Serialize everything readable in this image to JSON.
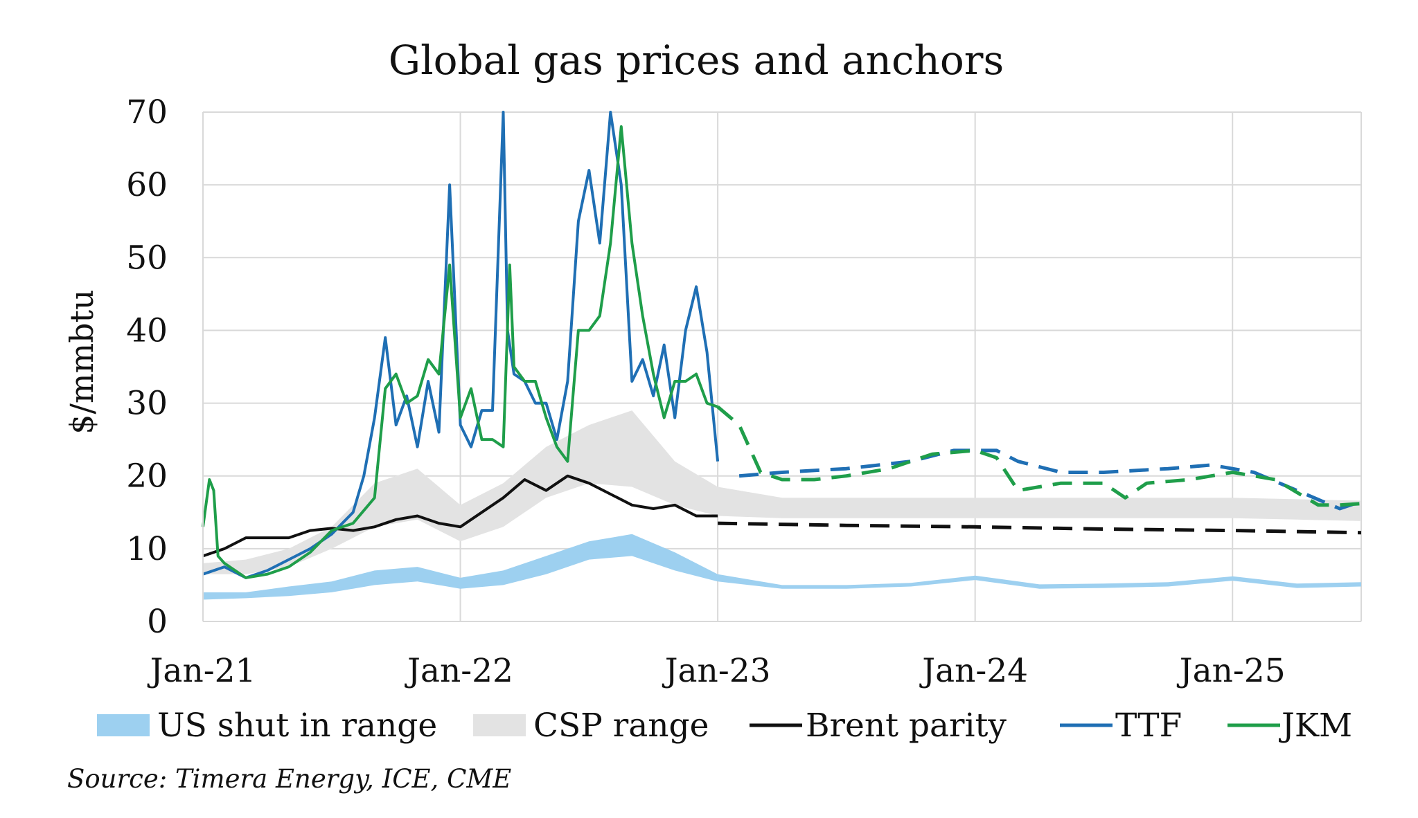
{
  "chart_data": {
    "type": "line",
    "title": "Global gas prices and anchors",
    "xlabel": "",
    "ylabel": "$/mmbtu",
    "ylim": [
      0,
      70
    ],
    "yticks": [
      0,
      10,
      20,
      30,
      40,
      50,
      60,
      70
    ],
    "xlim": [
      "2021-01",
      "2025-07"
    ],
    "x_unit": "months since Jan-21",
    "xlim_months": [
      0,
      54
    ],
    "xticks": [
      {
        "month": 0,
        "label": "Jan-21"
      },
      {
        "month": 12,
        "label": "Jan-22"
      },
      {
        "month": 24,
        "label": "Jan-23"
      },
      {
        "month": 36,
        "label": "Jan-24"
      },
      {
        "month": 48,
        "label": "Jan-25"
      }
    ],
    "grid": true,
    "legend_position": "bottom",
    "source": "Source: Timera Energy, ICE, CME",
    "colors": {
      "us_shut_in": "#9dd0f0",
      "csp": "#e3e3e3",
      "brent": "#111111",
      "ttf": "#1f6fb4",
      "jkm": "#1f9e4a",
      "grid": "#d9d9d9"
    },
    "bands": [
      {
        "name": "US shut in range",
        "color": "#9dd0f0",
        "x": [
          0,
          2,
          4,
          6,
          8,
          10,
          12,
          14,
          16,
          18,
          20,
          22,
          24,
          27,
          30,
          33,
          36,
          39,
          42,
          45,
          48,
          51,
          54
        ],
        "low": [
          3.0,
          3.2,
          3.5,
          4.0,
          5.0,
          5.5,
          4.5,
          5.0,
          6.5,
          8.5,
          9.0,
          7.0,
          5.5,
          4.5,
          4.5,
          4.8,
          5.7,
          4.5,
          4.6,
          4.8,
          5.6,
          4.6,
          4.8
        ],
        "high": [
          4.0,
          4.0,
          4.8,
          5.5,
          7.0,
          7.5,
          6.0,
          7.0,
          9.0,
          11.0,
          12.0,
          9.5,
          6.5,
          5.0,
          5.0,
          5.3,
          6.3,
          5.1,
          5.2,
          5.4,
          6.2,
          5.2,
          5.4
        ]
      },
      {
        "name": "CSP range",
        "color": "#e3e3e3",
        "x": [
          0,
          2,
          4,
          6,
          8,
          10,
          12,
          14,
          16,
          18,
          20,
          22,
          24,
          27,
          30,
          33,
          36,
          39,
          42,
          45,
          48,
          51,
          54
        ],
        "low": [
          6.5,
          6.5,
          7.5,
          10.0,
          13.0,
          14.0,
          11.0,
          13.0,
          17.0,
          19.0,
          18.5,
          16.0,
          14.5,
          14.2,
          14.2,
          14.2,
          14.2,
          14.2,
          14.2,
          14.2,
          14.2,
          14.0,
          13.8
        ],
        "high": [
          8.0,
          8.5,
          10.0,
          13.0,
          19.0,
          21.0,
          16.0,
          19.0,
          24.0,
          27.0,
          29.0,
          22.0,
          18.5,
          17.0,
          17.0,
          17.0,
          17.0,
          17.0,
          17.0,
          17.0,
          17.0,
          16.8,
          16.6
        ]
      }
    ],
    "series": [
      {
        "name": "Brent parity",
        "color": "#111111",
        "style": "solid",
        "x": [
          0,
          1,
          2,
          3,
          4,
          5,
          6,
          7,
          8,
          9,
          10,
          11,
          12,
          13,
          14,
          15,
          16,
          17,
          18,
          19,
          20,
          21,
          22,
          23,
          24
        ],
        "y": [
          9.0,
          10.0,
          11.5,
          11.5,
          11.5,
          12.5,
          12.8,
          12.5,
          13.0,
          14.0,
          14.5,
          13.5,
          13.0,
          15.0,
          17.0,
          19.5,
          18.0,
          20.0,
          19.0,
          17.5,
          16.0,
          15.5,
          16.0,
          14.5,
          14.5
        ]
      },
      {
        "name": "Brent parity (forward)",
        "color": "#111111",
        "style": "dashed",
        "x": [
          24,
          30,
          36,
          42,
          48,
          54
        ],
        "y": [
          13.5,
          13.2,
          13.0,
          12.7,
          12.5,
          12.2
        ]
      },
      {
        "name": "TTF",
        "color": "#1f6fb4",
        "style": "solid",
        "x": [
          0,
          1,
          2,
          3,
          4,
          5,
          6,
          7,
          7.5,
          8,
          8.5,
          9,
          9.5,
          10,
          10.5,
          11,
          11.5,
          12,
          12.5,
          13,
          13.5,
          14,
          14.2,
          14.5,
          15,
          15.5,
          16,
          16.5,
          17,
          17.5,
          18,
          18.5,
          19,
          19.5,
          20,
          20.5,
          21,
          21.5,
          22,
          22.5,
          23,
          23.5,
          24
        ],
        "y": [
          6.5,
          7.5,
          6.0,
          7.0,
          8.5,
          10.0,
          12.0,
          15.0,
          20.0,
          28.0,
          39.0,
          27.0,
          31.0,
          24.0,
          33.0,
          26.0,
          60.0,
          27.0,
          24.0,
          29.0,
          29.0,
          71.0,
          40.0,
          34.0,
          33.0,
          30.0,
          30.0,
          25.0,
          33.0,
          55.0,
          62.0,
          52.0,
          72.0,
          60.0,
          33.0,
          36.0,
          31.0,
          38.0,
          28.0,
          40.0,
          46.0,
          37.0,
          22.0
        ]
      },
      {
        "name": "TTF (forward)",
        "color": "#1f6fb4",
        "style": "dashed",
        "x": [
          25,
          27,
          30,
          33,
          35,
          37,
          38,
          40,
          42,
          45,
          47,
          49,
          51,
          53,
          54
        ],
        "y": [
          20.0,
          20.5,
          21.0,
          22.0,
          23.5,
          23.5,
          22.0,
          20.5,
          20.5,
          21.0,
          21.5,
          20.5,
          18.0,
          15.5,
          16.5
        ]
      },
      {
        "name": "JKM",
        "color": "#1f9e4a",
        "style": "solid",
        "x": [
          0,
          0.3,
          0.5,
          0.7,
          1,
          2,
          3,
          4,
          5,
          6,
          7,
          8,
          8.5,
          9,
          9.5,
          10,
          10.5,
          11,
          11.5,
          12,
          12.5,
          13,
          13.5,
          14,
          14.3,
          14.5,
          15,
          15.5,
          16,
          16.5,
          17,
          17.5,
          18,
          18.5,
          19,
          19.5,
          20,
          20.5,
          21,
          21.5,
          22,
          22.5,
          23,
          23.5,
          24
        ],
        "y": [
          13.0,
          19.5,
          18.0,
          9.0,
          8.0,
          6.0,
          6.5,
          7.5,
          9.5,
          12.5,
          13.5,
          17.0,
          32.0,
          34.0,
          30.0,
          31.0,
          36.0,
          34.0,
          49.0,
          28.0,
          32.0,
          25.0,
          25.0,
          24.0,
          49.0,
          35.0,
          33.0,
          33.0,
          28.0,
          24.0,
          22.0,
          40.0,
          40.0,
          42.0,
          52.0,
          68.0,
          52.0,
          42.0,
          34.0,
          28.0,
          33.0,
          33.0,
          34.0,
          30.0,
          29.5
        ]
      },
      {
        "name": "JKM (forward)",
        "color": "#1f9e4a",
        "style": "dashed",
        "x": [
          24,
          25,
          26,
          27,
          28.5,
          30,
          32,
          34,
          36,
          37,
          38,
          40,
          42,
          43,
          44,
          46,
          48,
          50,
          52,
          53,
          54
        ],
        "y": [
          29.5,
          27.0,
          20.5,
          19.5,
          19.5,
          20.0,
          21.0,
          23.0,
          23.5,
          22.5,
          18.0,
          19.0,
          19.0,
          17.0,
          19.0,
          19.5,
          20.5,
          19.5,
          16.0,
          16.0,
          16.2
        ]
      }
    ],
    "legend": [
      {
        "label": "US shut in range",
        "kind": "band",
        "color": "#9dd0f0"
      },
      {
        "label": "CSP range",
        "kind": "band",
        "color": "#e3e3e3"
      },
      {
        "label": "Brent parity",
        "kind": "line",
        "color": "#111111"
      },
      {
        "label": "TTF",
        "kind": "line",
        "color": "#1f6fb4"
      },
      {
        "label": "JKM",
        "kind": "line",
        "color": "#1f9e4a"
      }
    ]
  }
}
